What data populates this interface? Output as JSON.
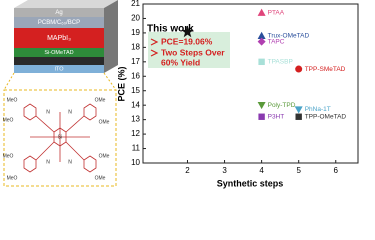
{
  "device_stack": {
    "layers": [
      "Ag",
      "PCBM/C₆₀/BCP",
      "MAPbI₃",
      "Si-OMeTAD",
      "ITO"
    ],
    "molecule_labels": [
      "MeO",
      "OMe",
      "MeO",
      "OMe",
      "N",
      "N",
      "Si",
      "N",
      "N",
      "MeO",
      "OMe",
      "MeO",
      "OMe"
    ]
  },
  "chart_data": {
    "type": "scatter",
    "xlabel": "Synthetic steps",
    "ylabel": "PCE (%)",
    "xlim": [
      0.8,
      6.6
    ],
    "xticks": [
      2,
      3,
      4,
      5,
      6
    ],
    "ylim": [
      10,
      21
    ],
    "yticks": [
      10,
      11,
      12,
      13,
      14,
      15,
      16,
      17,
      18,
      19,
      20,
      21
    ],
    "annotations": [
      "This work",
      "PCE=19.06%",
      "Two Steps Over",
      "60% Yield"
    ],
    "series": [
      {
        "name": "This work",
        "color": "#111111",
        "marker": "star",
        "x": [
          2
        ],
        "values": [
          19.06
        ]
      },
      {
        "name": "PTAA",
        "color": "#e0457b",
        "marker": "triangle",
        "x": [
          4
        ],
        "values": [
          20.4
        ]
      },
      {
        "name": "Trux-OMeTAD",
        "color": "#2a4f9c",
        "marker": "triangle",
        "x": [
          4
        ],
        "values": [
          18.8
        ]
      },
      {
        "name": "TAPC",
        "color": "#b03fb0",
        "marker": "diamond",
        "x": [
          4
        ],
        "values": [
          18.4
        ]
      },
      {
        "name": "TPASBP",
        "color": "#a8e0d8",
        "marker": "square",
        "x": [
          4
        ],
        "values": [
          17.0
        ]
      },
      {
        "name": "TPP-SMeTAD",
        "color": "#d42020",
        "marker": "circle",
        "x": [
          5
        ],
        "values": [
          16.5
        ]
      },
      {
        "name": "Poly-TPD",
        "color": "#5a9a3a",
        "marker": "down",
        "x": [
          4
        ],
        "values": [
          14.0
        ]
      },
      {
        "name": "P3HT",
        "color": "#8a3ab0",
        "marker": "square",
        "x": [
          4
        ],
        "values": [
          13.2
        ]
      },
      {
        "name": "PhNa-1T",
        "color": "#4aa3c8",
        "marker": "down",
        "x": [
          5
        ],
        "values": [
          13.7
        ]
      },
      {
        "name": "TPP-OMeTAD",
        "color": "#333333",
        "marker": "square",
        "x": [
          5
        ],
        "values": [
          13.2
        ]
      }
    ]
  }
}
